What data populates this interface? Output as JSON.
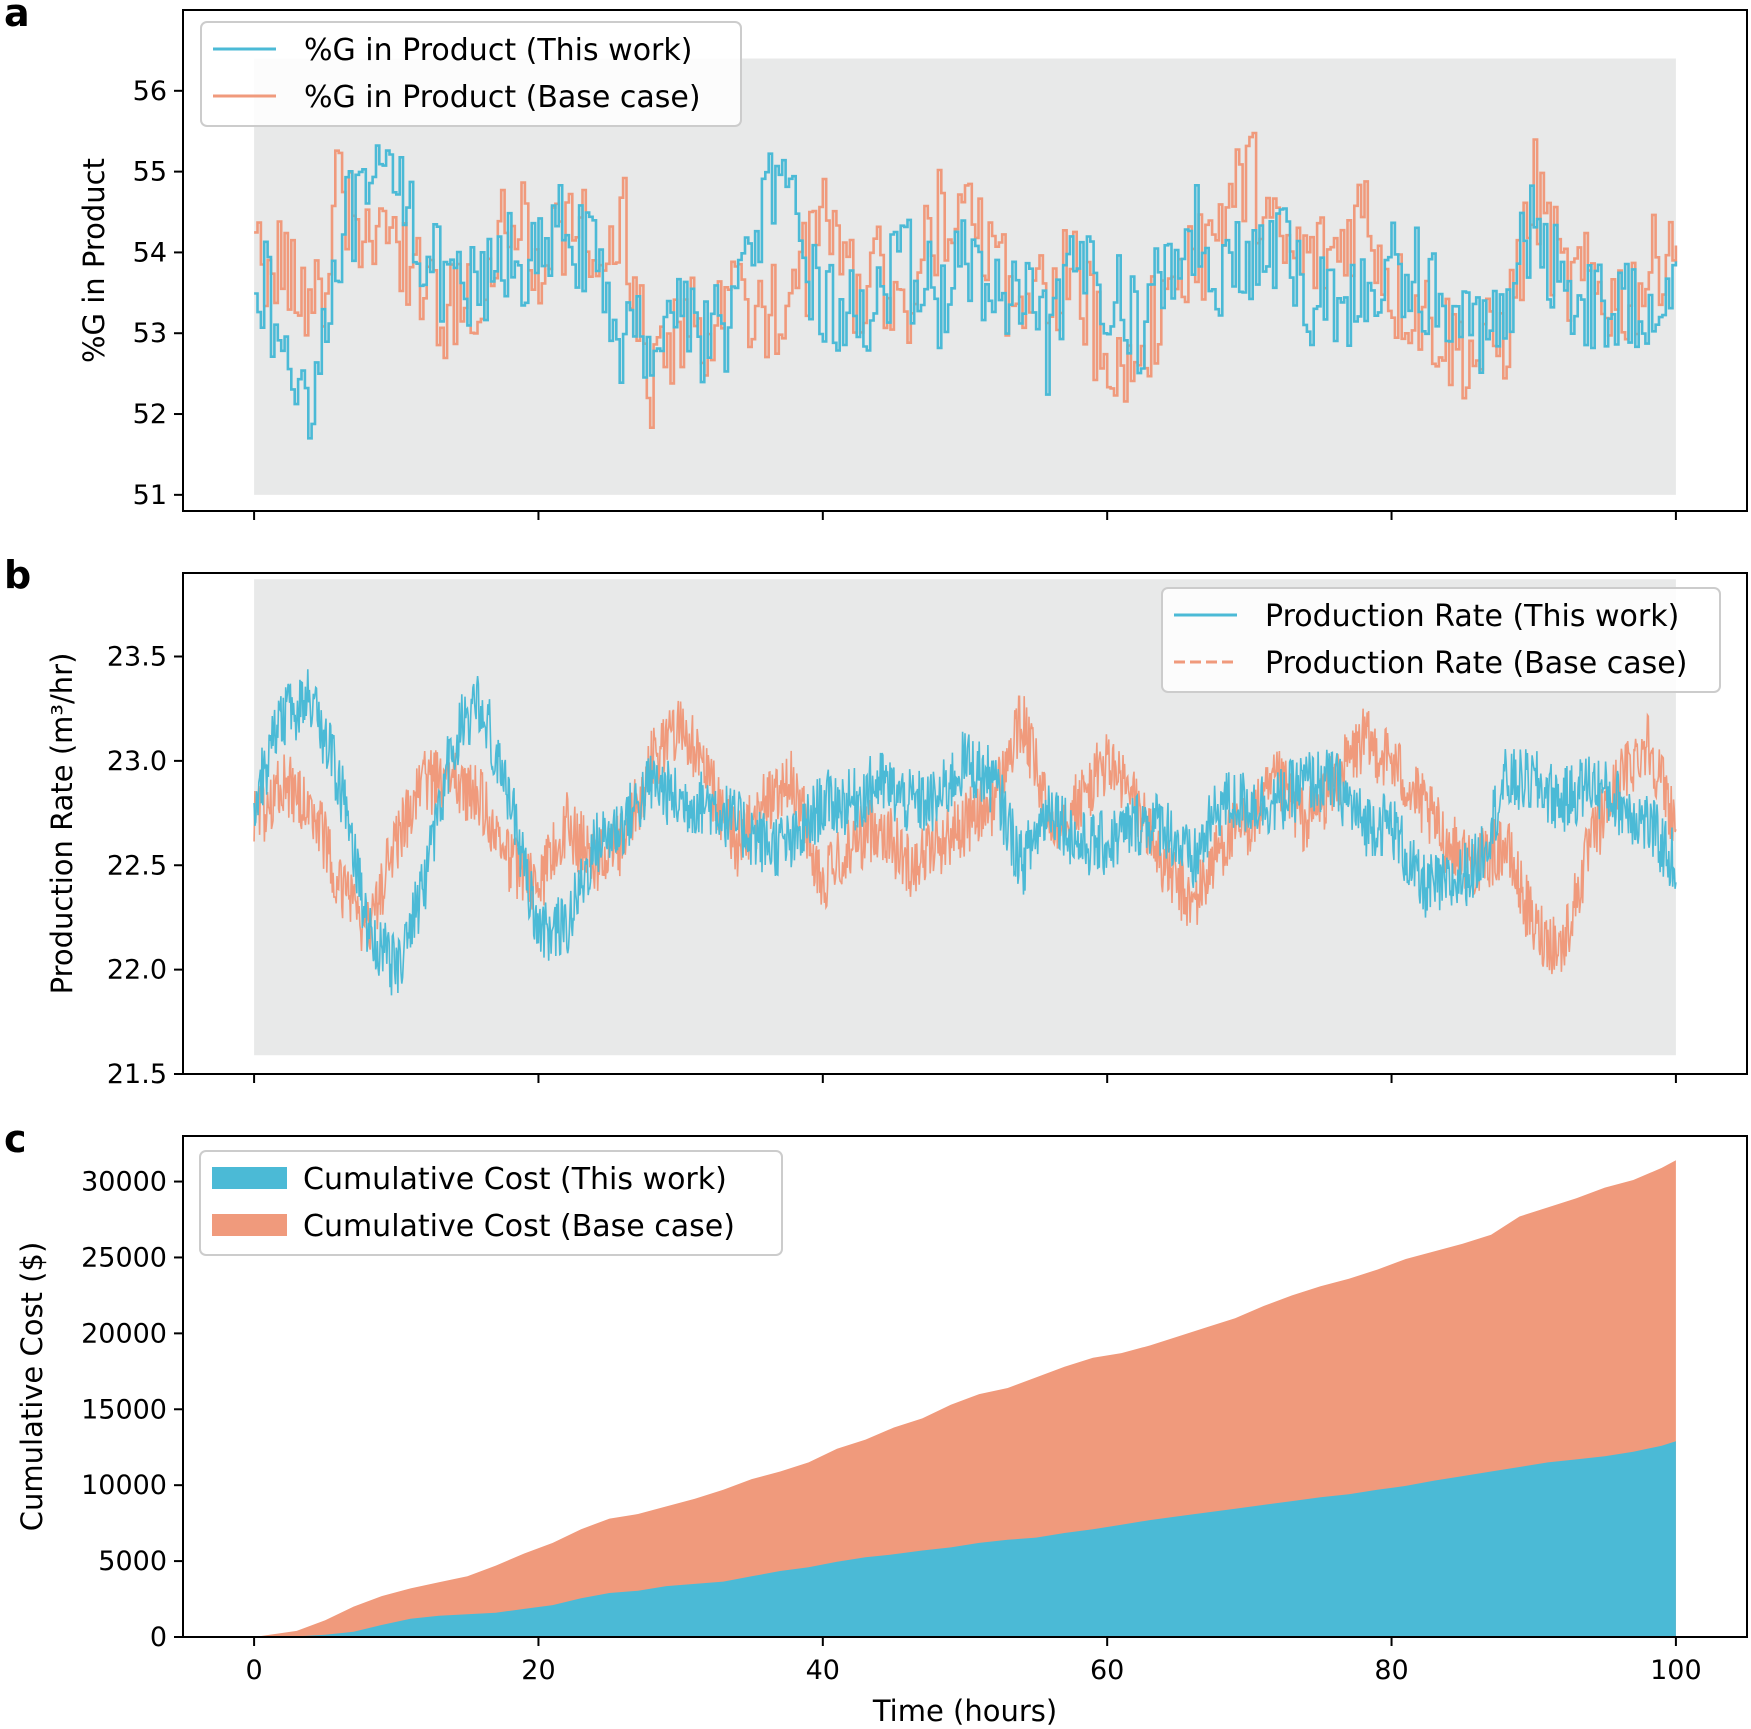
{
  "colors": {
    "this_work": "#4bbad6",
    "base_case": "#f09a7c",
    "shade": "#e8e9e9"
  },
  "shared_xlabel": "Time (hours)",
  "chart_data": [
    {
      "panel": "a",
      "type": "line",
      "ylabel": "%G in Product",
      "xlim": [
        -5,
        105
      ],
      "ylim": [
        50.8,
        57.0
      ],
      "yticks": [
        51,
        52,
        53,
        54,
        55,
        56
      ],
      "xticks": [
        0,
        20,
        40,
        60,
        80,
        100
      ],
      "x_tick_labels_shown": false,
      "shaded_region": {
        "x": [
          0,
          100
        ],
        "y": [
          51.0,
          56.4
        ]
      },
      "legend_position": "upper-left",
      "series": [
        {
          "name": "%G in Product (This work)",
          "style": "solid",
          "color_key": "this_work",
          "x": [
            0,
            2,
            4,
            6,
            8,
            10,
            12,
            14,
            16,
            18,
            20,
            22,
            24,
            26,
            28,
            30,
            32,
            34,
            36,
            38,
            40,
            42,
            44,
            46,
            48,
            50,
            52,
            54,
            56,
            58,
            60,
            62,
            64,
            66,
            68,
            70,
            72,
            74,
            76,
            78,
            80,
            82,
            84,
            86,
            88,
            90,
            92,
            94,
            96,
            98,
            100
          ],
          "y": [
            54.0,
            52.6,
            52.3,
            54.3,
            54.5,
            55.2,
            53.9,
            53.4,
            53.5,
            54.0,
            53.8,
            54.4,
            53.7,
            52.9,
            53.0,
            53.4,
            52.9,
            53.4,
            54.8,
            54.3,
            53.3,
            53.2,
            53.5,
            53.8,
            53.4,
            53.9,
            53.4,
            53.3,
            52.8,
            53.9,
            53.6,
            53.0,
            53.8,
            54.3,
            53.8,
            53.8,
            54.1,
            53.4,
            53.5,
            53.3,
            53.8,
            53.7,
            53.1,
            53.0,
            53.5,
            54.3,
            53.6,
            53.4,
            53.2,
            53.5,
            53.9
          ]
        },
        {
          "name": "%G in Product (Base case)",
          "style": "solid",
          "color_key": "base_case",
          "x": [
            0,
            2,
            4,
            6,
            8,
            10,
            12,
            14,
            16,
            18,
            20,
            22,
            24,
            26,
            28,
            30,
            32,
            34,
            36,
            38,
            40,
            42,
            44,
            46,
            48,
            50,
            52,
            54,
            56,
            58,
            60,
            62,
            64,
            66,
            68,
            70,
            72,
            74,
            76,
            78,
            80,
            82,
            84,
            86,
            88,
            90,
            92,
            94,
            96,
            98,
            100
          ],
          "y": [
            53.8,
            54.1,
            53.0,
            54.9,
            53.9,
            54.2,
            53.6,
            53.2,
            53.6,
            54.4,
            54.0,
            54.4,
            53.9,
            54.3,
            52.2,
            53.1,
            53.1,
            53.4,
            53.3,
            53.4,
            54.5,
            53.6,
            53.7,
            53.5,
            54.4,
            54.8,
            54.0,
            53.1,
            53.6,
            53.7,
            52.4,
            52.7,
            53.5,
            53.8,
            54.5,
            55.0,
            54.0,
            53.9,
            54.0,
            54.6,
            53.5,
            53.3,
            52.9,
            52.7,
            53.0,
            54.8,
            53.6,
            53.6,
            53.4,
            53.7,
            54.4
          ]
        }
      ]
    },
    {
      "panel": "b",
      "type": "line",
      "ylabel": "Production Rate (m³/hr)",
      "xlim": [
        -5,
        105
      ],
      "ylim": [
        21.5,
        23.9
      ],
      "yticks": [
        21.5,
        22.0,
        22.5,
        23.0,
        23.5
      ],
      "ytick_labels": [
        "21.5",
        "22.0",
        "22.5",
        "23.0",
        "23.5"
      ],
      "xticks": [
        0,
        20,
        40,
        60,
        80,
        100
      ],
      "x_tick_labels_shown": false,
      "shaded_region": {
        "x": [
          0,
          100
        ],
        "y": [
          21.59,
          23.87
        ]
      },
      "legend_position": "upper-right",
      "series": [
        {
          "name": "Production Rate (This work)",
          "style": "solid",
          "color_key": "this_work",
          "x": [
            0,
            2,
            4,
            6,
            8,
            10,
            12,
            14,
            16,
            18,
            20,
            22,
            24,
            26,
            28,
            30,
            32,
            34,
            36,
            38,
            40,
            42,
            44,
            46,
            48,
            50,
            52,
            54,
            56,
            58,
            60,
            62,
            64,
            66,
            68,
            70,
            72,
            74,
            76,
            78,
            80,
            82,
            84,
            86,
            88,
            90,
            92,
            94,
            96,
            98,
            100
          ],
          "y": [
            22.8,
            23.2,
            23.3,
            22.9,
            22.2,
            22.0,
            22.4,
            23.1,
            23.3,
            22.8,
            22.2,
            22.2,
            22.6,
            22.7,
            22.9,
            22.8,
            22.8,
            22.7,
            22.6,
            22.6,
            22.8,
            22.8,
            22.9,
            22.8,
            22.8,
            23.0,
            22.9,
            22.5,
            22.8,
            22.6,
            22.6,
            22.7,
            22.7,
            22.5,
            22.8,
            22.8,
            22.8,
            22.9,
            22.9,
            22.7,
            22.7,
            22.4,
            22.4,
            22.5,
            22.9,
            22.9,
            22.8,
            22.9,
            22.8,
            22.7,
            22.5
          ]
        },
        {
          "name": "Production Rate (Base case)",
          "style": "dashed",
          "color_key": "base_case",
          "x": [
            0,
            2,
            4,
            6,
            8,
            10,
            12,
            14,
            16,
            18,
            20,
            22,
            24,
            26,
            28,
            30,
            32,
            34,
            36,
            38,
            40,
            42,
            44,
            46,
            48,
            50,
            52,
            54,
            56,
            58,
            60,
            62,
            64,
            66,
            68,
            70,
            72,
            74,
            76,
            78,
            80,
            82,
            84,
            86,
            88,
            90,
            92,
            94,
            96,
            98,
            100
          ],
          "y": [
            22.7,
            22.9,
            22.8,
            22.4,
            22.2,
            22.6,
            22.9,
            22.9,
            22.8,
            22.5,
            22.4,
            22.7,
            22.5,
            22.6,
            23.0,
            23.2,
            22.9,
            22.6,
            22.8,
            22.9,
            22.4,
            22.6,
            22.7,
            22.5,
            22.6,
            22.7,
            22.8,
            23.2,
            22.7,
            22.8,
            23.0,
            22.8,
            22.5,
            22.3,
            22.6,
            22.7,
            22.9,
            22.7,
            22.9,
            23.1,
            23.0,
            22.8,
            22.6,
            22.5,
            22.6,
            22.2,
            22.1,
            22.6,
            22.9,
            23.1,
            22.7
          ]
        }
      ]
    },
    {
      "panel": "c",
      "type": "area",
      "ylabel": "Cumulative Cost ($)",
      "xlabel": "Time (hours)",
      "xlim": [
        -5,
        105
      ],
      "ylim": [
        0,
        33000
      ],
      "yticks": [
        0,
        5000,
        10000,
        15000,
        20000,
        25000,
        30000
      ],
      "xticks": [
        0,
        20,
        40,
        60,
        80,
        100
      ],
      "x_tick_labels_shown": true,
      "legend_position": "upper-left",
      "series": [
        {
          "name": "Cumulative Cost (This work)",
          "color_key": "this_work",
          "x": [
            0,
            3,
            5,
            7,
            9,
            11,
            13,
            15,
            17,
            19,
            21,
            23,
            25,
            27,
            29,
            31,
            33,
            35,
            37,
            39,
            41,
            43,
            45,
            47,
            49,
            51,
            53,
            55,
            57,
            59,
            61,
            63,
            65,
            67,
            69,
            71,
            73,
            75,
            77,
            79,
            81,
            83,
            85,
            87,
            89,
            91,
            93,
            95,
            97,
            99,
            100
          ],
          "y": [
            0,
            40,
            150,
            350,
            800,
            1200,
            1400,
            1500,
            1600,
            1850,
            2100,
            2550,
            2900,
            3050,
            3350,
            3500,
            3650,
            4000,
            4350,
            4600,
            4950,
            5250,
            5450,
            5700,
            5900,
            6200,
            6400,
            6550,
            6850,
            7100,
            7400,
            7700,
            7950,
            8200,
            8450,
            8700,
            8950,
            9200,
            9400,
            9700,
            9950,
            10300,
            10600,
            10900,
            11200,
            11500,
            11700,
            11900,
            12200,
            12600,
            12900
          ]
        },
        {
          "name": "Cumulative Cost (Base case)",
          "color_key": "base_case",
          "x": [
            0,
            3,
            5,
            7,
            9,
            11,
            13,
            15,
            17,
            19,
            21,
            23,
            25,
            27,
            29,
            31,
            33,
            35,
            37,
            39,
            41,
            43,
            45,
            47,
            49,
            51,
            53,
            55,
            57,
            59,
            61,
            63,
            65,
            67,
            69,
            71,
            73,
            75,
            77,
            79,
            81,
            83,
            85,
            87,
            89,
            91,
            93,
            95,
            97,
            99,
            100
          ],
          "y": [
            0,
            400,
            1100,
            2000,
            2700,
            3200,
            3600,
            4000,
            4700,
            5500,
            6200,
            7100,
            7800,
            8100,
            8600,
            9100,
            9700,
            10400,
            10900,
            11500,
            12400,
            13000,
            13800,
            14400,
            15300,
            16000,
            16400,
            17100,
            17800,
            18400,
            18700,
            19200,
            19800,
            20400,
            21000,
            21800,
            22500,
            23100,
            23600,
            24200,
            24900,
            25400,
            25900,
            26500,
            27700,
            28300,
            28900,
            29600,
            30100,
            30900,
            31400
          ]
        }
      ]
    }
  ],
  "labels": {
    "panel_a": "a",
    "panel_b": "b",
    "panel_c": "c"
  }
}
